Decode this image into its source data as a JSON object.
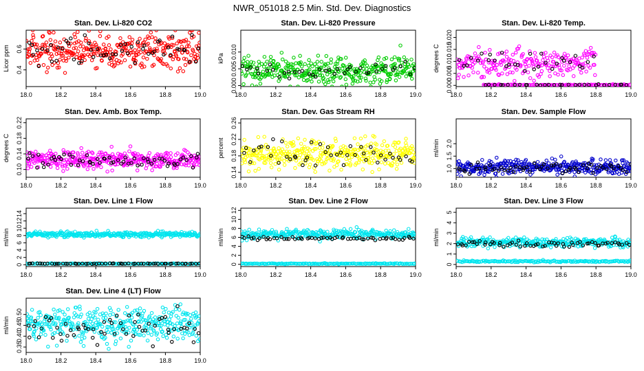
{
  "figure_title": "NWR_051018  2.5 Min. Std. Dev. Diagnostics",
  "colors": {
    "red": "#ff0000",
    "green": "#00cc00",
    "magenta": "#ff00ff",
    "yellow": "#ffff00",
    "blue": "#0000cc",
    "cyan": "#00e5ee",
    "black": "#000000"
  },
  "chart_data": [
    {
      "type": "scatter",
      "title": "Stan. Dev. Li-820 CO2",
      "ylabel": "Licor ppm",
      "xlim": [
        18.0,
        19.0
      ],
      "ylim": [
        0.24,
        0.78
      ],
      "xticks": [
        18.0,
        18.2,
        18.4,
        18.6,
        18.8,
        19.0
      ],
      "xtick_labels": [
        "18.0",
        "18.2",
        "18.4",
        "18.6",
        "18.8",
        "19.0"
      ],
      "yticks": [
        0.4,
        0.6
      ],
      "ytick_labels": [
        "0.4",
        "0.6"
      ],
      "series": [
        {
          "name": "main",
          "color": "red",
          "n": 360,
          "center": 0.58,
          "spread": 0.09
        },
        {
          "name": "black",
          "color": "black",
          "n": 55,
          "center": 0.58,
          "spread": 0.07
        }
      ]
    },
    {
      "type": "scatter",
      "title": "Stan. Dev. Li-820 Pressure",
      "ylabel": "kPa",
      "xlim": [
        18.0,
        19.0
      ],
      "ylim": [
        -0.0003,
        0.0165
      ],
      "xticks": [
        18.0,
        18.2,
        18.4,
        18.6,
        18.8,
        19.0
      ],
      "xtick_labels": [
        "18.0",
        "18.2",
        "18.4",
        "18.6",
        "18.8",
        "19.0"
      ],
      "yticks": [
        0.0,
        0.005,
        0.01
      ],
      "ytick_labels": [
        "0.000",
        "0.005",
        "0.010"
      ],
      "series": [
        {
          "name": "main",
          "color": "green",
          "n": 380,
          "center": 0.0045,
          "spread": 0.0022
        },
        {
          "name": "black",
          "color": "black",
          "n": 40,
          "center": 0.005,
          "spread": 0.0012
        }
      ]
    },
    {
      "type": "scatter",
      "title": "Stan. Dev. Li-820 Temp.",
      "ylabel": "degrees C",
      "xlim": [
        18.0,
        19.0
      ],
      "ylim": [
        -0.0005,
        0.023
      ],
      "xticks": [
        18.0,
        18.2,
        18.4,
        18.6,
        18.8,
        19.0
      ],
      "xtick_labels": [
        "18.0",
        "18.2",
        "18.4",
        "18.6",
        "18.8",
        "19.0"
      ],
      "yticks": [
        0.0,
        0.005,
        0.01,
        0.015,
        0.02
      ],
      "ytick_labels": [
        "0.000",
        "0.005",
        "0.010",
        "0.015",
        "0.020"
      ],
      "series": [
        {
          "name": "main",
          "color": "magenta",
          "n": 230,
          "center": 0.009,
          "spread": 0.003,
          "x_range": [
            18.0,
            18.8
          ]
        },
        {
          "name": "zero",
          "color": "magenta",
          "n": 110,
          "center": 0.0002,
          "spread": 0.0001,
          "x_range": [
            18.15,
            19.0
          ]
        },
        {
          "name": "black",
          "color": "black",
          "n": 30,
          "center": 0.0095,
          "spread": 0.0022,
          "x_range": [
            18.0,
            18.8
          ]
        },
        {
          "name": "black-zero",
          "color": "black",
          "n": 30,
          "center": 0.0002,
          "spread": 0.0001,
          "x_range": [
            18.15,
            19.0
          ]
        }
      ]
    },
    {
      "type": "scatter",
      "title": "Stan. Dev. Amb. Box Temp.",
      "ylabel": "degrees C",
      "xlim": [
        18.0,
        19.0
      ],
      "ylim": [
        0.08,
        0.23
      ],
      "xticks": [
        18.0,
        18.2,
        18.4,
        18.6,
        18.8,
        19.0
      ],
      "xtick_labels": [
        "18.0",
        "18.2",
        "18.4",
        "18.6",
        "18.8",
        "19.0"
      ],
      "yticks": [
        0.1,
        0.14,
        0.18,
        0.22
      ],
      "ytick_labels": [
        "0.10",
        "0.14",
        "0.18",
        "0.22"
      ],
      "series": [
        {
          "name": "main",
          "color": "magenta",
          "n": 380,
          "center": 0.125,
          "spread": 0.012
        },
        {
          "name": "black",
          "color": "black",
          "n": 60,
          "center": 0.125,
          "spread": 0.01
        }
      ]
    },
    {
      "type": "scatter",
      "title": "Stan. Dev. Gas Stream RH",
      "ylabel": "percent",
      "xlim": [
        18.0,
        19.0
      ],
      "ylim": [
        0.128,
        0.27
      ],
      "xticks": [
        18.0,
        18.2,
        18.4,
        18.6,
        18.8,
        19.0
      ],
      "xtick_labels": [
        "18.0",
        "18.2",
        "18.4",
        "18.6",
        "18.8",
        "19.0"
      ],
      "yticks": [
        0.14,
        0.18,
        0.22,
        0.26
      ],
      "ytick_labels": [
        "0.14",
        "0.18",
        "0.22",
        "0.26"
      ],
      "series": [
        {
          "name": "main",
          "color": "yellow",
          "n": 380,
          "center": 0.185,
          "spread": 0.018
        },
        {
          "name": "black",
          "color": "black",
          "n": 45,
          "center": 0.185,
          "spread": 0.015
        }
      ]
    },
    {
      "type": "scatter",
      "title": "Stan. Dev. Sample Flow",
      "ylabel": "ml/min",
      "xlim": [
        18.0,
        19.0
      ],
      "ylim": [
        0.65,
        3.0
      ],
      "xticks": [
        18.0,
        18.2,
        18.4,
        18.6,
        18.8,
        19.0
      ],
      "xtick_labels": [
        "18.0",
        "18.2",
        "18.4",
        "18.6",
        "18.8",
        "19.0"
      ],
      "yticks": [
        1.0,
        1.5,
        2.0
      ],
      "ytick_labels": [
        "1.0",
        "1.5",
        "2.0"
      ],
      "series": [
        {
          "name": "main",
          "color": "blue",
          "n": 360,
          "center": 1.05,
          "spread": 0.14
        },
        {
          "name": "black",
          "color": "black",
          "n": 60,
          "center": 1.0,
          "spread": 0.1
        }
      ]
    },
    {
      "type": "scatter",
      "title": "Stan. Dev. Line 1 Flow",
      "ylabel": "ml/min",
      "xlim": [
        18.0,
        19.0
      ],
      "ylim": [
        -0.5,
        15.5
      ],
      "xticks": [
        18.0,
        18.2,
        18.4,
        18.6,
        18.8,
        19.0
      ],
      "xtick_labels": [
        "18.0",
        "18.2",
        "18.4",
        "18.6",
        "18.8",
        "19.0"
      ],
      "yticks": [
        0,
        2,
        4,
        6,
        8,
        10,
        12,
        14
      ],
      "ytick_labels": [
        "0",
        "2",
        "4",
        "6",
        "8",
        "10",
        "12",
        "14"
      ],
      "series": [
        {
          "name": "main",
          "color": "cyan",
          "n": 320,
          "center": 8.3,
          "spread": 0.35
        },
        {
          "name": "low",
          "color": "cyan",
          "n": 140,
          "center": 0.3,
          "spread": 0.05
        },
        {
          "name": "black",
          "color": "black",
          "n": 60,
          "center": 0.3,
          "spread": 0.05
        }
      ]
    },
    {
      "type": "scatter",
      "title": "Stan. Dev. Line 2 Flow",
      "ylabel": "ml/min",
      "xlim": [
        18.0,
        19.0
      ],
      "ylim": [
        -0.5,
        12.5
      ],
      "xticks": [
        18.0,
        18.2,
        18.4,
        18.6,
        18.8,
        19.0
      ],
      "xtick_labels": [
        "18.0",
        "18.2",
        "18.4",
        "18.6",
        "18.8",
        "19.0"
      ],
      "yticks": [
        0,
        2,
        4,
        6,
        8,
        10,
        12
      ],
      "ytick_labels": [
        "0",
        "2",
        "4",
        "6",
        "8",
        "10",
        "12"
      ],
      "series": [
        {
          "name": "main",
          "color": "cyan",
          "n": 300,
          "center": 6.6,
          "spread": 0.5
        },
        {
          "name": "low",
          "color": "cyan",
          "n": 160,
          "center": 0.15,
          "spread": 0.05
        },
        {
          "name": "black",
          "color": "black",
          "n": 60,
          "center": 5.8,
          "spread": 0.2
        }
      ]
    },
    {
      "type": "scatter",
      "title": "Stan. Dev. Line 3 Flow",
      "ylabel": "ml/min",
      "xlim": [
        18.0,
        19.0
      ],
      "ylim": [
        -0.2,
        5.4
      ],
      "xticks": [
        18.0,
        18.2,
        18.4,
        18.6,
        18.8,
        19.0
      ],
      "xtick_labels": [
        "18.0",
        "18.2",
        "18.4",
        "18.6",
        "18.8",
        "19.0"
      ],
      "yticks": [
        0,
        1,
        2,
        3,
        4,
        5
      ],
      "ytick_labels": [
        "0",
        "1",
        "2",
        "3",
        "4",
        "5"
      ],
      "series": [
        {
          "name": "main",
          "color": "cyan",
          "n": 300,
          "center": 2.1,
          "spread": 0.22
        },
        {
          "name": "low",
          "color": "cyan",
          "n": 160,
          "center": 0.3,
          "spread": 0.04
        },
        {
          "name": "black",
          "color": "black",
          "n": 60,
          "center": 1.95,
          "spread": 0.15
        }
      ]
    },
    {
      "type": "scatter",
      "title": "Stan. Dev. Line 4 (LT) Flow",
      "ylabel": "ml/min",
      "xlim": [
        18.0,
        19.0
      ],
      "ylim": [
        0.325,
        0.575
      ],
      "xticks": [
        18.0,
        18.2,
        18.4,
        18.6,
        18.8,
        19.0
      ],
      "xtick_labels": [
        "18.0",
        "18.2",
        "18.4",
        "18.6",
        "18.8",
        "19.0"
      ],
      "yticks": [
        0.35,
        0.4,
        0.45,
        0.5
      ],
      "ytick_labels": [
        "0.35",
        "0.40",
        "0.45",
        "0.50"
      ],
      "series": [
        {
          "name": "main",
          "color": "cyan",
          "n": 380,
          "center": 0.455,
          "spread": 0.04
        },
        {
          "name": "black",
          "color": "black",
          "n": 60,
          "center": 0.445,
          "spread": 0.035
        }
      ]
    }
  ]
}
